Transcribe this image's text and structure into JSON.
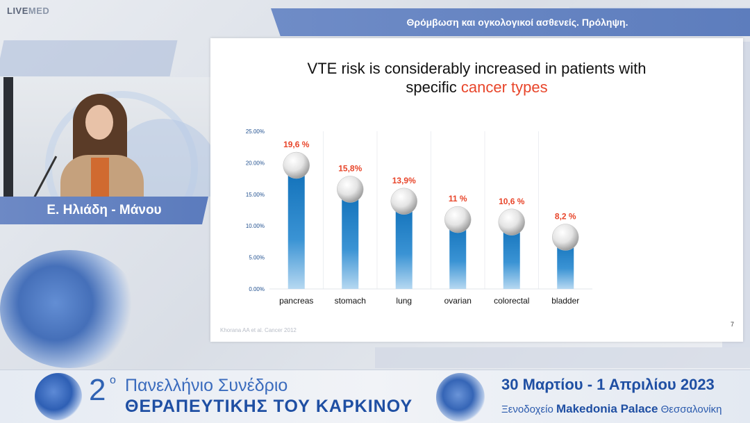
{
  "logo": {
    "text_main": "LIVE",
    "text_accent": "MED"
  },
  "header": {
    "title": "Θρόμβωση και ογκολογικοί ασθενείς. Πρόληψη."
  },
  "speaker": {
    "name": "Ε. Ηλιάδη - Μάνου"
  },
  "slide": {
    "title_line1": "VTE risk is considerably increased in patients with",
    "title_line2_prefix": "specific ",
    "title_line2_highlight": "cancer types",
    "citation": "Khorana AA et al. Cancer 2012",
    "page_number": "7"
  },
  "chart_data": {
    "type": "bar",
    "categories": [
      "pancreas",
      "stomach",
      "lung",
      "ovarian",
      "colorectal",
      "bladder"
    ],
    "values": [
      19.6,
      15.8,
      13.9,
      11,
      10.6,
      8.2
    ],
    "data_labels": [
      "19,6 %",
      "15,8%",
      "13,9%",
      "11 %",
      "10,6 %",
      "8,2 %"
    ],
    "yticks": [
      "0.00%",
      "5.00%",
      "10.00%",
      "15.00%",
      "20.00%",
      "25.00%"
    ],
    "ylim": [
      0,
      25
    ],
    "grid": "vertical",
    "bar_color": "#1d7fc4",
    "label_color": "#e8452a"
  },
  "footer": {
    "number": "2",
    "sup": "ο",
    "line1": "Πανελλήνιο Συνέδριο",
    "line2": "ΘΕΡΑΠΕΥΤΙΚΗΣ ΤΟΥ ΚΑΡΚΙΝΟΥ",
    "dates": "30 Μαρτίου - 1 Απριλίου 2023",
    "venue_prefix": "Ξενοδοχείο ",
    "venue_name": "Makedonia Palace",
    "venue_city": " Θεσσαλονίκη"
  }
}
